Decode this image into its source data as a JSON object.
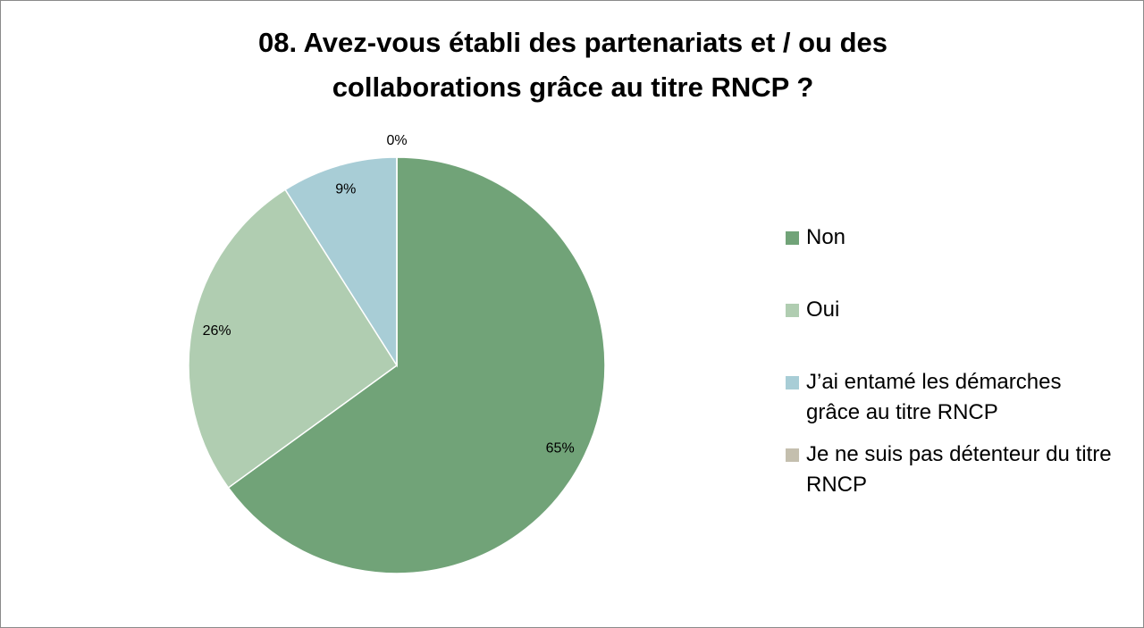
{
  "chart_data": {
    "type": "pie",
    "title": "08. Avez-vous établi des partenariats et / ou des collaborations grâce au titre RNCP ?",
    "categories": [
      "Non",
      "Oui",
      "J’ai entamé les démarches grâce au titre RNCP",
      "Je ne suis pas détenteur du titre RNCP"
    ],
    "values": [
      65,
      26,
      9,
      0
    ],
    "value_labels": [
      "65%",
      "26%",
      "9%",
      "0%"
    ],
    "colors": [
      "#71a378",
      "#b0cdb1",
      "#a8cdd6",
      "#c4bfae"
    ],
    "legend": "right"
  }
}
